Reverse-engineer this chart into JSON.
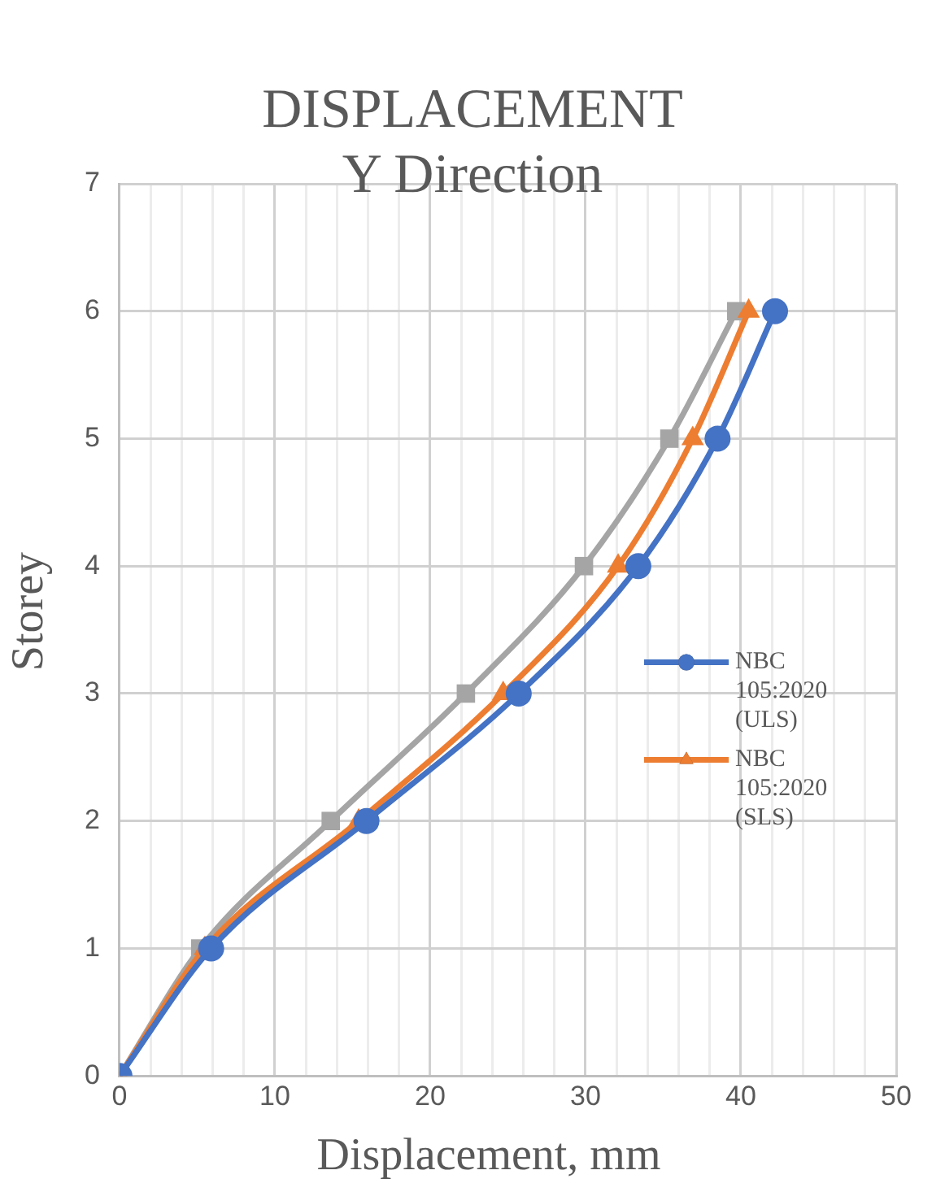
{
  "chart_data": {
    "type": "line",
    "title": "DISPLACEMENT\nY Direction",
    "xlabel": "Displacement, mm",
    "ylabel": "Storey",
    "xlim": [
      0,
      50
    ],
    "xticks": [
      0,
      {
        "value": 2,
        "label": null
      },
      {
        "value": 4,
        "label": null
      },
      {
        "value": 6,
        "label": null
      },
      {
        "value": 8,
        "label": null
      },
      10,
      {
        "value": 12,
        "label": null
      },
      {
        "value": 14,
        "label": null
      },
      {
        "value": 16,
        "label": null
      },
      {
        "value": 18,
        "label": null
      },
      20,
      {
        "value": 22,
        "label": null
      },
      {
        "value": 24,
        "label": null
      },
      {
        "value": 26,
        "label": null
      },
      {
        "value": 28,
        "label": null
      },
      30,
      {
        "value": 32,
        "label": null
      },
      {
        "value": 34,
        "label": null
      },
      {
        "value": 36,
        "label": null
      },
      {
        "value": 38,
        "label": null
      },
      40,
      {
        "value": 42,
        "label": null
      },
      {
        "value": 44,
        "label": null
      },
      {
        "value": 46,
        "label": null
      },
      {
        "value": 48,
        "label": null
      },
      50
    ],
    "ylim": [
      0,
      7
    ],
    "yticks": [
      0,
      1,
      2,
      3,
      4,
      5,
      6,
      7
    ],
    "grid": true,
    "legend": "right",
    "series": [
      {
        "name": "NBC 105:2020 (ULS)",
        "color": "#4472c4",
        "marker": "circle",
        "x": [
          0,
          5.9,
          15.9,
          25.7,
          33.4,
          38.5,
          42.2
        ],
        "values": [
          0,
          1,
          2,
          3,
          4,
          5,
          6
        ]
      },
      {
        "name": "NBC 105:2020 (SLS)",
        "color": "#ed7d31",
        "marker": "triangle",
        "x": [
          0,
          5.5,
          15.4,
          24.7,
          32.1,
          36.9,
          40.5
        ],
        "values": [
          0,
          1,
          2,
          3,
          4,
          5,
          6
        ]
      },
      {
        "color": "#a5a5a5",
        "marker": "square",
        "x": [
          0,
          5.2,
          13.6,
          22.3,
          29.9,
          35.4,
          39.7
        ],
        "values": [
          0,
          1,
          2,
          3,
          4,
          5,
          6
        ]
      }
    ]
  }
}
